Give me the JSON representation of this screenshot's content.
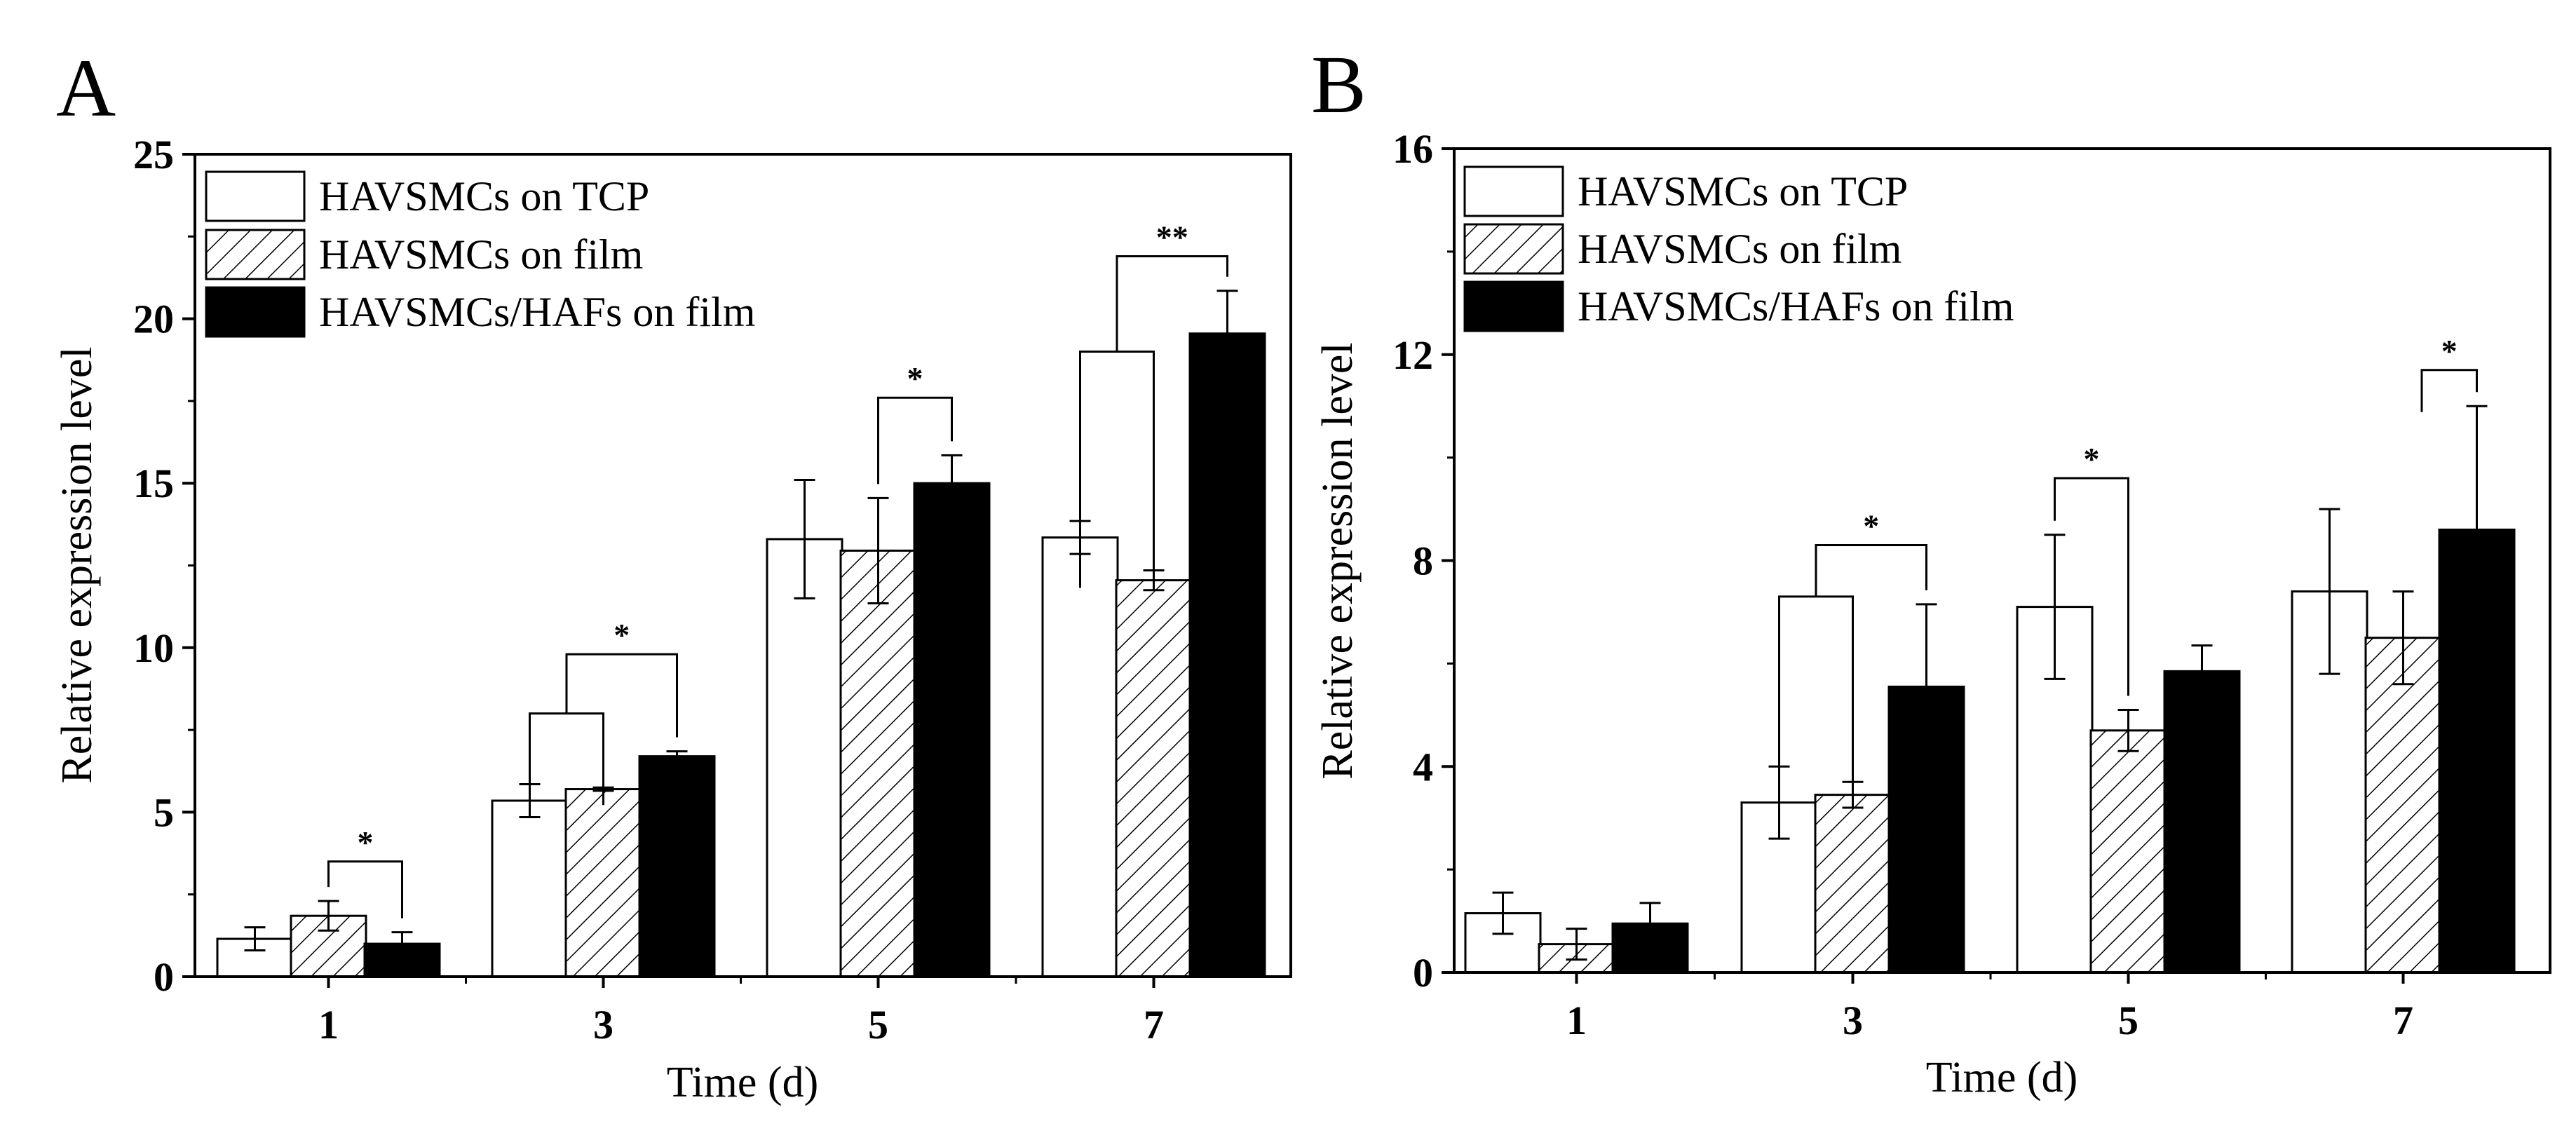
{
  "figure": {
    "colors": {
      "background": "#ffffff",
      "ink": "#000000"
    },
    "legend": {
      "entries": [
        "HAVSMCs on TCP",
        "HAVSMCs on film",
        "HAVSMCs/HAFs on film"
      ],
      "styles": [
        "white",
        "hatched",
        "black"
      ]
    }
  },
  "chart_data": [
    {
      "panel_label": "A",
      "type": "bar",
      "xlabel": "Time (d)",
      "ylabel": "Relative expression level",
      "ylim": [
        0,
        25
      ],
      "yticks": [
        0,
        5,
        10,
        15,
        20,
        25
      ],
      "categories": [
        "1",
        "3",
        "5",
        "7"
      ],
      "legend_position": "top-left",
      "series": [
        {
          "name": "HAVSMCs on TCP",
          "style": "white",
          "values": [
            1.15,
            5.35,
            13.3,
            13.35
          ],
          "errors": [
            0.35,
            0.5,
            1.8,
            0.5
          ]
        },
        {
          "name": "HAVSMCs on film",
          "style": "hatched",
          "values": [
            1.85,
            5.7,
            12.95,
            12.05
          ],
          "errors": [
            0.45,
            0.05,
            1.6,
            0.3
          ]
        },
        {
          "name": "HAVSMCs/HAFs on film",
          "style": "black",
          "values": [
            1.0,
            6.7,
            15.0,
            19.55
          ],
          "errors": [
            0.35,
            0.15,
            0.85,
            1.3
          ]
        }
      ],
      "significance": [
        {
          "category": 0,
          "type": "bracket",
          "from": 1,
          "to": 2,
          "y": 3.5,
          "label": "*"
        },
        {
          "category": 1,
          "type": "group",
          "from_group": [
            0,
            1
          ],
          "to": 2,
          "group_y": 8.0,
          "y": 9.8,
          "label": "*"
        },
        {
          "category": 2,
          "type": "bracket",
          "from": 1,
          "to": 2,
          "y": 17.6,
          "label": "*"
        },
        {
          "category": 3,
          "type": "group",
          "from_group": [
            0,
            1
          ],
          "to": 2,
          "group_y": 19.0,
          "y": 21.9,
          "label": "**"
        }
      ]
    },
    {
      "panel_label": "B",
      "type": "bar",
      "xlabel": "Time (d)",
      "ylabel": "Relative expression level",
      "ylim": [
        0,
        16
      ],
      "yticks": [
        0,
        4,
        8,
        12,
        16
      ],
      "categories": [
        "1",
        "3",
        "5",
        "7"
      ],
      "legend_position": "top-left",
      "series": [
        {
          "name": "HAVSMCs on TCP",
          "style": "white",
          "values": [
            1.15,
            3.3,
            7.1,
            7.4
          ],
          "errors": [
            0.4,
            0.7,
            1.4,
            1.6
          ]
        },
        {
          "name": "HAVSMCs on film",
          "style": "hatched",
          "values": [
            0.55,
            3.45,
            4.7,
            6.5
          ],
          "errors": [
            0.3,
            0.25,
            0.4,
            0.9
          ]
        },
        {
          "name": "HAVSMCs/HAFs on film",
          "style": "black",
          "values": [
            0.95,
            5.55,
            5.85,
            8.6
          ],
          "errors": [
            0.4,
            1.6,
            0.5,
            2.4
          ]
        }
      ],
      "significance": [
        {
          "category": 1,
          "type": "group",
          "from_group": [
            0,
            1
          ],
          "to": 2,
          "group_y": 7.3,
          "y": 8.3,
          "label": "*"
        },
        {
          "category": 2,
          "type": "bracket",
          "from": 0,
          "to": 1,
          "y": 9.6,
          "label": "*"
        },
        {
          "category": 3,
          "type": "bracket",
          "from": 2,
          "to": 2,
          "y": 11.7,
          "label": "*"
        }
      ]
    }
  ]
}
